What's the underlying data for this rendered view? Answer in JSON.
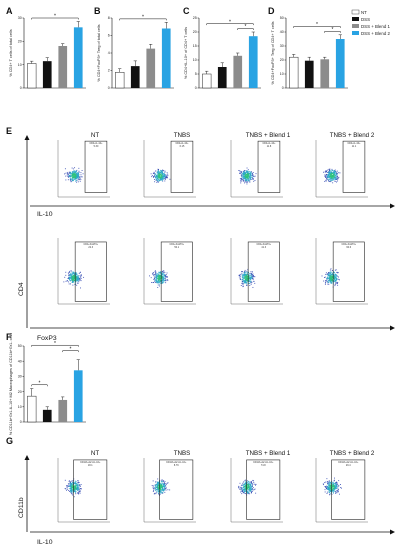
{
  "colors": {
    "NT": "#ffffff",
    "DSS": "#111111",
    "DSS + Blend 1": "#8c8c8c",
    "DSS + Blend 2": "#29a3e3",
    "gate": "#222222"
  },
  "legend": [
    "NT",
    "DSS",
    "DSS + Blend 1",
    "DSS + Blend 2"
  ],
  "panel_letters": {
    "A": "A",
    "B": "B",
    "C": "C",
    "D": "D",
    "E": "E",
    "F": "F",
    "G": "G"
  },
  "chart_data": [
    {
      "panel": "A",
      "type": "bar",
      "categories": [
        "NT",
        "DSS",
        "DSS + Blend 1",
        "DSS + Blend 2"
      ],
      "values": [
        10.5,
        11.5,
        18,
        26
      ],
      "errors": [
        1,
        1.5,
        1,
        2.5
      ],
      "ylim": [
        0,
        30
      ],
      "yticks": [
        0,
        10,
        20,
        30
      ],
      "ylabel": "% CD4+ T cells of total cells",
      "significance": [
        {
          "from": 0,
          "to": 3,
          "label": "*"
        }
      ]
    },
    {
      "panel": "B",
      "type": "bar",
      "categories": [
        "NT",
        "DSS",
        "DSS + Blend 1",
        "DSS + Blend 2"
      ],
      "values": [
        1.8,
        2.5,
        4.5,
        6.8
      ],
      "errors": [
        0.4,
        0.6,
        0.5,
        0.7
      ],
      "ylim": [
        0,
        8
      ],
      "yticks": [
        0,
        2,
        4,
        6,
        8
      ],
      "ylabel": "% CD4+FoxP3+ Treg of total cells",
      "significance": [
        {
          "from": 0,
          "to": 3,
          "label": "*"
        }
      ]
    },
    {
      "panel": "C",
      "type": "bar",
      "categories": [
        "NT",
        "DSS",
        "DSS + Blend 1",
        "DSS + Blend 2"
      ],
      "values": [
        5,
        7.5,
        11.5,
        18.5
      ],
      "errors": [
        1,
        1.5,
        1,
        1.5
      ],
      "ylim": [
        0,
        25
      ],
      "yticks": [
        0,
        5,
        10,
        15,
        20,
        25
      ],
      "ylabel": "% CD4+IL-10+ of CD4+ T cells",
      "significance": [
        {
          "from": 0,
          "to": 3,
          "label": "*"
        },
        {
          "from": 2,
          "to": 3,
          "label": "*"
        }
      ]
    },
    {
      "panel": "D",
      "type": "bar",
      "categories": [
        "NT",
        "DSS",
        "DSS + Blend 1",
        "DSS + Blend 2"
      ],
      "values": [
        22,
        19.5,
        20.5,
        35
      ],
      "errors": [
        2,
        2.5,
        1.5,
        3
      ],
      "ylim": [
        0,
        50
      ],
      "yticks": [
        0,
        10,
        20,
        30,
        40,
        50
      ],
      "ylabel": "% CD4+FoxP3+ Treg of CD4+ T cells",
      "significance": [
        {
          "from": 0,
          "to": 3,
          "label": "*"
        },
        {
          "from": 2,
          "to": 3,
          "label": "*"
        }
      ]
    },
    {
      "panel": "F",
      "type": "bar",
      "categories": [
        "NT",
        "DSS",
        "DSS + Blend 1",
        "DSS + Blend 2"
      ],
      "values": [
        17,
        8,
        14.5,
        34
      ],
      "errors": [
        5,
        2,
        2,
        7
      ],
      "ylim": [
        0,
        50
      ],
      "yticks": [
        0,
        10,
        20,
        30,
        40,
        50
      ],
      "ylabel": "% CD11b+Gr1-IL-10+ M2 Macrophages of CD11b+Gr1- cells",
      "significance": [
        {
          "from": 0,
          "to": 1,
          "label": "*"
        },
        {
          "from": 0,
          "to": 3,
          "label": "*"
        },
        {
          "from": 2,
          "to": 3,
          "label": "*"
        }
      ]
    }
  ],
  "flow": {
    "sample_titles": [
      "NT",
      "TNBS",
      "TNBS + Blend 1",
      "TNBS + Blend 2"
    ],
    "E_row1": {
      "x_axis": "IL-10",
      "gate_labels": [
        "CD4+IL-10+\n5.30",
        "CD4+IL-10+\n6.15",
        "CD4+IL-10+\n11.8",
        "CD4+IL-10+\n11.1"
      ]
    },
    "E_row2": {
      "x_axis": "FoxP3",
      "gate_labels": [
        "CD4+FoxP3+\n22.3",
        "CD4+FoxP3+\n50.1",
        "CD4+FoxP3+\n41.3",
        "CD4+FoxP3+\n60.6"
      ]
    },
    "E_y_axis": "CD4",
    "G": {
      "x_axis": "IL-10",
      "y_axis": "CD11b",
      "gate_labels": [
        "CD11b+Gr1-IL-10+\n18.1",
        "CD11b+Gr1-IL-10+\n8.79",
        "CD11b+Gr1-IL-10+\n74.8",
        "CD11b+Gr1-IL-10+\n29.4"
      ]
    }
  }
}
